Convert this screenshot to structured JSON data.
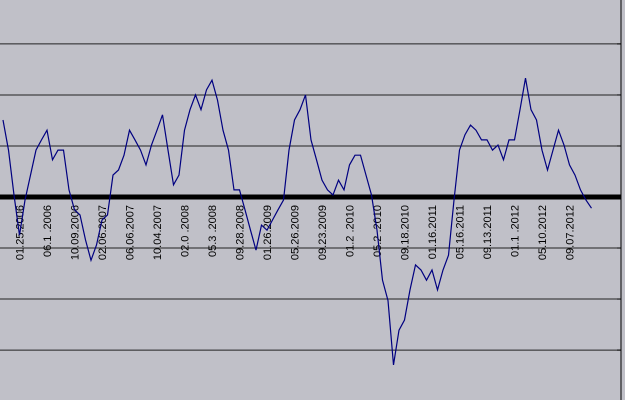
{
  "chart_data": {
    "type": "line",
    "categories": [
      null,
      null,
      null,
      "01.25.2006",
      null,
      null,
      null,
      null,
      "06.1 .2006",
      null,
      null,
      null,
      null,
      "10.09.2006",
      null,
      null,
      null,
      null,
      "02.06.2007",
      null,
      null,
      null,
      null,
      "06.06.2007",
      null,
      null,
      null,
      null,
      "10.04.2007",
      null,
      null,
      null,
      null,
      "02.0 .2008",
      null,
      null,
      null,
      null,
      "05.3 .2008",
      null,
      null,
      null,
      null,
      "09.28.2008",
      null,
      null,
      null,
      null,
      "01.26.2009",
      null,
      null,
      null,
      null,
      "05.26.2009",
      null,
      null,
      null,
      null,
      "09.23.2009",
      null,
      null,
      null,
      null,
      "01.2 .2010",
      null,
      null,
      null,
      null,
      "05.2 .2010",
      null,
      null,
      null,
      null,
      "09.18.2010",
      null,
      null,
      null,
      null,
      "01.16.2011",
      null,
      null,
      null,
      null,
      "05.16.2011",
      null,
      null,
      null,
      null,
      "09.13.2011",
      null,
      null,
      null,
      null,
      "01.1 .2012",
      null,
      null,
      null,
      null,
      "05.10.2012",
      null,
      null,
      null,
      null,
      "09.07.2012",
      null,
      null,
      null,
      null
    ],
    "series": [
      {
        "color": "#000080",
        "values": [
          1.51,
          0.92,
          0.04,
          -0.75,
          -0.06,
          0.43,
          0.92,
          1.12,
          1.31,
          0.73,
          0.92,
          0.92,
          0.14,
          -0.25,
          -0.35,
          -0.84,
          -1.24,
          -0.94,
          -0.45,
          -0.35,
          0.43,
          0.53,
          0.82,
          1.31,
          1.12,
          0.92,
          0.63,
          1.02,
          1.31,
          1.61,
          0.92,
          0.24,
          0.43,
          1.31,
          1.71,
          2.0,
          1.71,
          2.1,
          2.29,
          1.9,
          1.31,
          0.92,
          0.14,
          0.14,
          -0.25,
          -0.65,
          -1.04,
          -0.55,
          -0.65,
          -0.45,
          -0.25,
          -0.06,
          0.92,
          1.51,
          1.71,
          2.0,
          1.12,
          0.73,
          0.33,
          0.14,
          0.04,
          0.33,
          0.14,
          0.63,
          0.82,
          0.82,
          0.43,
          0.04,
          -0.65,
          -1.63,
          -2.03,
          -3.29,
          -2.61,
          -2.41,
          -1.82,
          -1.33,
          -1.43,
          -1.63,
          -1.43,
          -1.82,
          -1.43,
          -1.14,
          -0.06,
          0.92,
          1.22,
          1.41,
          1.31,
          1.12,
          1.12,
          0.92,
          1.02,
          0.73,
          1.12,
          1.12,
          1.71,
          2.33,
          1.71,
          1.51,
          0.92,
          0.53,
          0.92,
          1.31,
          1.02,
          0.63,
          0.43,
          0.14,
          -0.06,
          -0.22
        ]
      }
    ],
    "ylim": [
      -3.9,
      3.9
    ],
    "yticks": [
      -3,
      -2,
      -1,
      0,
      1,
      2,
      3
    ],
    "grid": true
  }
}
